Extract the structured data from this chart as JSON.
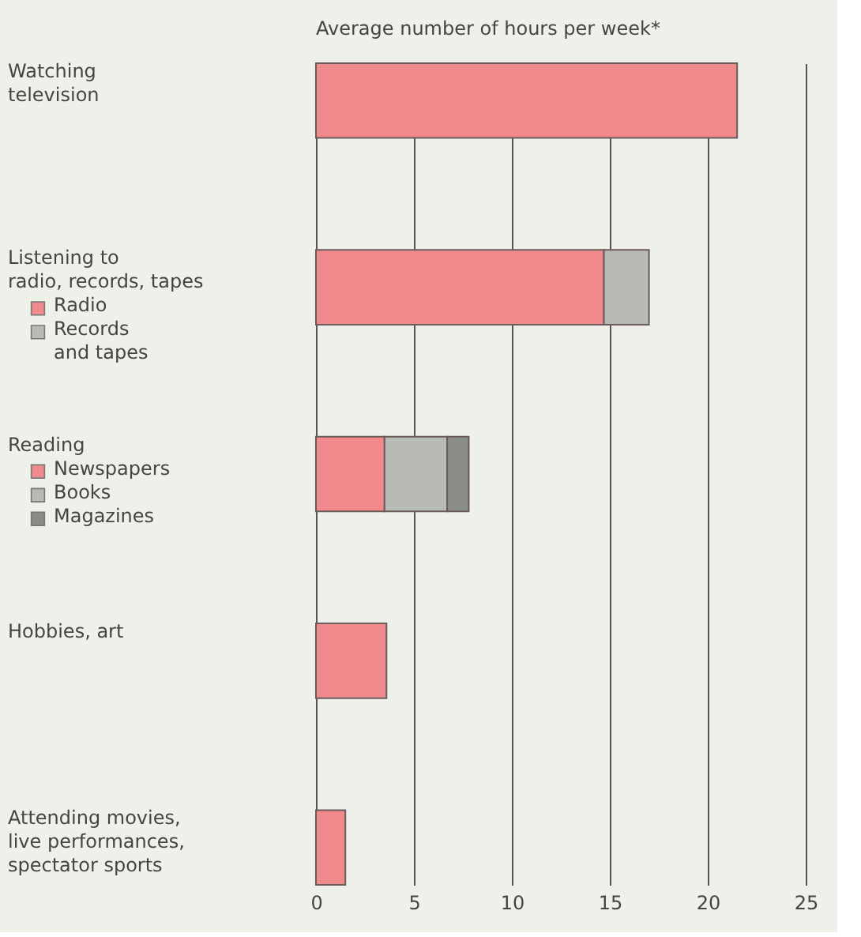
{
  "chart_data": {
    "type": "bar",
    "orientation": "horizontal",
    "stacked": true,
    "xlabel": "Average number of hours per week*",
    "categories": [
      "Watching\ntelevision",
      "Listening to\nradio, records, tapes",
      "Reading",
      "Hobbies, art",
      "Attending movies,\nlive performances,\nspectator sports"
    ],
    "series": [
      {
        "color": "#f08a8c",
        "values": [
          21.5,
          null,
          null,
          3.6,
          1.5
        ]
      },
      {
        "name": "Radio",
        "color": "#f08a8c",
        "values": [
          null,
          14.7,
          null,
          null,
          null
        ]
      },
      {
        "name": "Records\nand tapes",
        "color": "#b8bab6",
        "values": [
          null,
          2.3,
          null,
          null,
          null
        ]
      },
      {
        "name": "Newspapers",
        "color": "#f08a8c",
        "values": [
          null,
          null,
          3.5,
          null,
          null
        ]
      },
      {
        "name": "Books",
        "color": "#b8bab6",
        "values": [
          null,
          null,
          3.2,
          null,
          null
        ]
      },
      {
        "name": "Magazines",
        "color": "#8a8c88",
        "values": [
          null,
          null,
          1.1,
          null,
          null
        ]
      }
    ],
    "xlim": [
      0,
      25
    ],
    "xticks": [
      0,
      5,
      10,
      15,
      20,
      25
    ],
    "grid": "x",
    "legend": "left"
  }
}
